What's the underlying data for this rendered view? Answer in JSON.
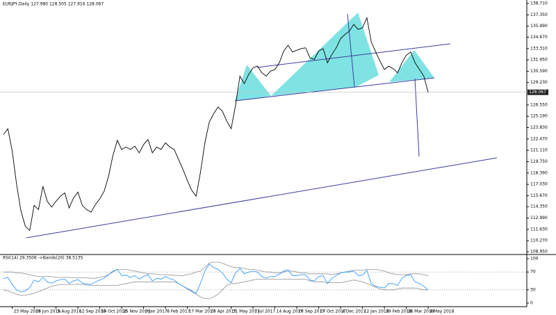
{
  "chart_data": [
    {
      "type": "line",
      "header": "EURJPY,Daily  127.980 128.505 127.916 128.067",
      "color": "#000000",
      "categories": [
        null,
        null,
        "23 May 2016",
        null,
        null,
        null,
        null,
        "29 Jun 2016",
        null,
        null,
        null,
        null,
        "5 Aug 2016",
        null,
        null,
        null,
        null,
        "12 Sep 2016",
        null,
        null,
        null,
        null,
        "19 Oct 2016",
        null,
        null,
        null,
        null,
        "25 Nov 2016",
        null,
        null,
        null,
        null,
        "2 Jan 2017",
        null,
        null,
        null,
        null,
        "8 Feb 2017",
        null,
        null,
        null,
        null,
        "17 Mar 2017",
        null,
        null,
        null,
        null,
        "24 Apr 2017",
        null,
        null,
        null,
        null,
        "31 May 2017",
        null,
        null,
        null,
        null,
        "7 Jul 2017",
        null,
        null,
        null,
        null,
        "14 Aug 2017",
        null,
        null,
        null,
        null,
        "20 Sep 2017",
        null,
        null,
        null,
        null,
        "27 Oct 2017",
        null,
        null,
        null,
        null,
        "4 Dec 2017",
        null,
        null,
        null,
        null,
        "12 Jan 2018",
        null,
        null,
        null,
        null,
        "19 Feb 2018",
        null,
        null,
        null,
        null,
        "28 Mar 2018",
        null,
        null,
        null,
        null,
        "4 May 2018"
      ],
      "values": [
        123.0,
        123.7,
        121,
        117,
        113.8,
        112,
        111.5,
        114.5,
        114,
        116.8,
        115,
        114.3,
        115,
        115.6,
        116,
        114.2,
        115.4,
        116.1,
        114.5,
        114,
        113.7,
        114.6,
        115.3,
        116.2,
        118,
        120.5,
        122.3,
        121.2,
        121.5,
        121.2,
        121.6,
        120.8,
        121.8,
        122.4,
        120.8,
        121.5,
        121.2,
        122,
        121.5,
        121.2,
        120,
        118.8,
        117.5,
        116.3,
        115.6,
        118.5,
        122,
        124.5,
        125.5,
        126.3,
        125.8,
        124.6,
        123.7,
        126.5,
        130,
        129.1,
        130.2,
        131,
        131.2,
        130.4,
        130,
        130.6,
        130.8,
        131.6,
        133,
        133.7,
        132.9,
        133.1,
        133.3,
        133.4,
        132.2,
        132.0,
        133,
        133.3,
        131.6,
        132.6,
        133.4,
        134.5,
        135,
        135.4,
        136.2,
        135.6,
        135.8,
        137,
        134.1,
        132.9,
        131.8,
        130.8,
        131.2,
        130.9,
        130.4,
        131.6,
        132.5,
        132.9,
        131.6,
        130.8,
        130,
        128.067
      ],
      "last_price": 128.067,
      "ylim": [
        108.95,
        138.71
      ],
      "yticks": [
        {
          "value": 138.71,
          "label": "138.710"
        },
        {
          "value": 137.35,
          "label": "137.350"
        },
        {
          "value": 135.99,
          "label": "135.990"
        },
        {
          "value": 134.67,
          "label": "134.670"
        },
        {
          "value": 133.31,
          "label": "133.310"
        },
        {
          "value": 131.95,
          "label": "131.950"
        },
        {
          "value": 130.59,
          "label": "130.590"
        },
        {
          "value": 129.23,
          "label": "129.230"
        },
        {
          "value": 126.55,
          "label": "126.550"
        },
        {
          "value": 125.19,
          "label": "125.190"
        },
        {
          "value": 123.83,
          "label": "123.830"
        },
        {
          "value": 122.47,
          "label": "122.470"
        },
        {
          "value": 121.11,
          "label": "121.110"
        },
        {
          "value": 119.75,
          "label": "119.750"
        },
        {
          "value": 118.39,
          "label": "118.390"
        },
        {
          "value": 117.03,
          "label": "117.030"
        },
        {
          "value": 115.67,
          "label": "115.670"
        },
        {
          "value": 114.35,
          "label": "114.350"
        },
        {
          "value": 112.99,
          "label": "112.990"
        },
        {
          "value": 111.63,
          "label": "111.630"
        },
        {
          "value": 110.27,
          "label": "110.270"
        },
        {
          "value": 108.95,
          "label": "108.950"
        }
      ]
    },
    {
      "type": "line",
      "title": "RSI(14) 29.3506 ->Bands(20) 38.5135",
      "ylim": [
        0,
        100
      ],
      "yticks": [
        0,
        30,
        70,
        100
      ],
      "levels": [
        30,
        70
      ],
      "series": [
        {
          "color": "#1e90ff",
          "values": [
            55,
            58,
            42,
            30,
            25,
            28,
            35,
            52,
            48,
            58,
            48,
            45,
            50,
            53,
            54,
            44,
            50,
            53,
            45,
            43,
            42,
            48,
            52,
            56,
            64,
            72,
            76,
            62,
            63,
            58,
            62,
            54,
            60,
            64,
            50,
            56,
            54,
            60,
            55,
            52,
            44,
            38,
            33,
            28,
            22,
            45,
            72,
            88,
            80,
            76,
            68,
            54,
            46,
            68,
            78,
            66,
            70,
            72,
            70,
            60,
            56,
            60,
            60,
            65,
            72,
            75,
            62,
            62,
            64,
            64,
            52,
            50,
            60,
            62,
            44,
            56,
            62,
            68,
            70,
            70,
            72,
            62,
            63,
            74,
            44,
            38,
            36,
            34,
            44,
            44,
            40,
            56,
            62,
            64,
            48,
            44,
            38,
            29.3506
          ]
        },
        {
          "color": "#909090",
          "values": [
            70,
            70,
            70,
            68,
            68,
            66,
            64,
            62,
            60,
            60,
            60,
            60,
            58,
            58,
            58,
            58,
            57,
            57,
            57,
            57,
            56,
            56,
            58,
            60,
            64,
            70,
            76,
            76,
            76,
            74,
            72,
            70,
            68,
            66,
            66,
            65,
            64,
            64,
            63,
            63,
            62,
            62,
            64,
            66,
            70,
            72,
            80,
            90,
            92,
            92,
            90,
            86,
            82,
            80,
            80,
            78,
            76,
            76,
            74,
            72,
            70,
            70,
            68,
            68,
            70,
            72,
            72,
            70,
            68,
            68,
            66,
            66,
            66,
            66,
            66,
            64,
            66,
            68,
            70,
            72,
            74,
            74,
            74,
            76,
            76,
            76,
            74,
            72,
            68,
            66,
            64,
            64,
            64,
            66,
            66,
            66,
            64,
            62
          ]
        },
        {
          "color": "#909090",
          "values": [
            30,
            28,
            24,
            20,
            18,
            18,
            20,
            22,
            26,
            30,
            34,
            38,
            40,
            42,
            42,
            42,
            42,
            43,
            42,
            41,
            40,
            40,
            40,
            40,
            40,
            40,
            40,
            42,
            44,
            46,
            48,
            48,
            48,
            48,
            48,
            48,
            48,
            48,
            48,
            48,
            44,
            38,
            32,
            26,
            20,
            14,
            10,
            10,
            14,
            20,
            30,
            40,
            44,
            44,
            46,
            48,
            50,
            52,
            54,
            54,
            54,
            54,
            54,
            54,
            54,
            54,
            54,
            54,
            54,
            54,
            50,
            48,
            48,
            48,
            46,
            46,
            46,
            46,
            48,
            50,
            52,
            50,
            48,
            44,
            40,
            36,
            32,
            30,
            30,
            30,
            32,
            34,
            34,
            34,
            34,
            32,
            30,
            30
          ]
        }
      ]
    }
  ]
}
